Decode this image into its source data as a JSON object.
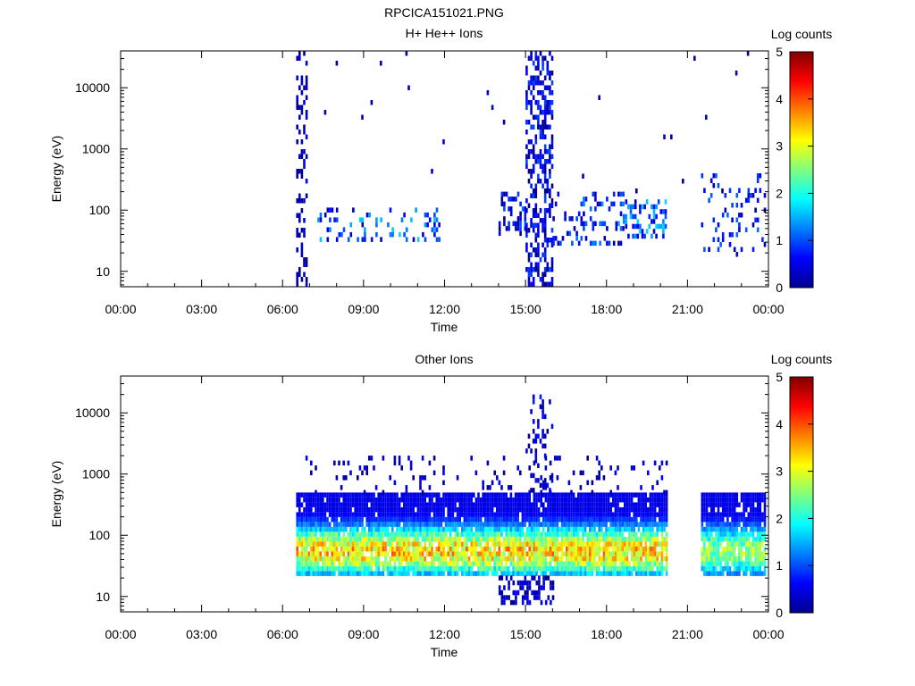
{
  "figure_title": "RPCICA151021.PNG",
  "chart_data": [
    {
      "type": "heatmap",
      "title": "H+ He++ Ions",
      "xlabel": "Time",
      "ylabel": "Energy (eV)",
      "x_ticks": [
        "00:00",
        "03:00",
        "06:00",
        "09:00",
        "12:00",
        "15:00",
        "18:00",
        "21:00",
        "00:00"
      ],
      "x_range_hours": [
        0,
        24
      ],
      "y_scale": "log",
      "y_ticks": [
        "10",
        "100",
        "1000",
        "10000"
      ],
      "y_tick_values": [
        10,
        100,
        1000,
        10000
      ],
      "ylim": [
        5.6,
        40000
      ],
      "colorbar": {
        "label": "Log counts",
        "ticks": [
          "0",
          "1",
          "2",
          "3",
          "4",
          "5"
        ],
        "range": [
          0,
          5
        ]
      },
      "data_blocks": [
        {
          "t": [
            6.5,
            6.9
          ],
          "e": [
            6,
            40000
          ],
          "level": [
            0.0,
            0.5
          ],
          "density": 0.35
        },
        {
          "t": [
            7.2,
            11.8
          ],
          "e": [
            35,
            110
          ],
          "level": [
            0.2,
            1.7
          ],
          "density": 0.18
        },
        {
          "t": [
            14.0,
            15.0
          ],
          "e": [
            40,
            200
          ],
          "level": [
            0.0,
            1.2
          ],
          "density": 0.3
        },
        {
          "t": [
            15.0,
            16.0
          ],
          "e": [
            6,
            40000
          ],
          "level": [
            0.0,
            1.0
          ],
          "density": 0.45
        },
        {
          "t": [
            16.0,
            18.6
          ],
          "e": [
            30,
            200
          ],
          "level": [
            0.1,
            1.4
          ],
          "density": 0.22
        },
        {
          "t": [
            18.6,
            20.2
          ],
          "e": [
            40,
            150
          ],
          "level": [
            0.3,
            1.7
          ],
          "density": 0.4
        },
        {
          "t": [
            21.5,
            23.9
          ],
          "e": [
            18,
            400
          ],
          "level": [
            0.1,
            1.2
          ],
          "density": 0.15
        },
        {
          "t": [
            6.5,
            24.0
          ],
          "e": [
            200,
            40000
          ],
          "level": [
            0.0,
            0.4
          ],
          "density": 0.004
        }
      ]
    },
    {
      "type": "heatmap",
      "title": "Other Ions",
      "xlabel": "Time",
      "ylabel": "Energy (eV)",
      "x_ticks": [
        "00:00",
        "03:00",
        "06:00",
        "09:00",
        "12:00",
        "15:00",
        "18:00",
        "21:00",
        "00:00"
      ],
      "x_range_hours": [
        0,
        24
      ],
      "y_scale": "log",
      "y_ticks": [
        "10",
        "100",
        "1000",
        "10000"
      ],
      "y_tick_values": [
        10,
        100,
        1000,
        10000
      ],
      "ylim": [
        5.6,
        40000
      ],
      "colorbar": {
        "label": "Log counts",
        "ticks": [
          "0",
          "1",
          "2",
          "3",
          "4",
          "5"
        ],
        "range": [
          0,
          5
        ]
      },
      "data_blocks": [
        {
          "t": [
            6.5,
            20.2
          ],
          "e": [
            22,
            500
          ],
          "level": [
            0.5,
            3.8
          ],
          "density": 0.92,
          "peak_e": 60
        },
        {
          "t": [
            21.5,
            23.9
          ],
          "e": [
            22,
            500
          ],
          "level": [
            0.5,
            3.0
          ],
          "density": 0.9,
          "peak_e": 60
        },
        {
          "t": [
            14.0,
            16.0
          ],
          "e": [
            8,
            22
          ],
          "level": [
            0.0,
            0.6
          ],
          "density": 0.5
        },
        {
          "t": [
            15.0,
            16.0
          ],
          "e": [
            500,
            20000
          ],
          "level": [
            0.0,
            0.8
          ],
          "density": 0.2
        },
        {
          "t": [
            6.5,
            20.2
          ],
          "e": [
            500,
            2000
          ],
          "level": [
            0.0,
            0.6
          ],
          "density": 0.08
        }
      ]
    }
  ]
}
